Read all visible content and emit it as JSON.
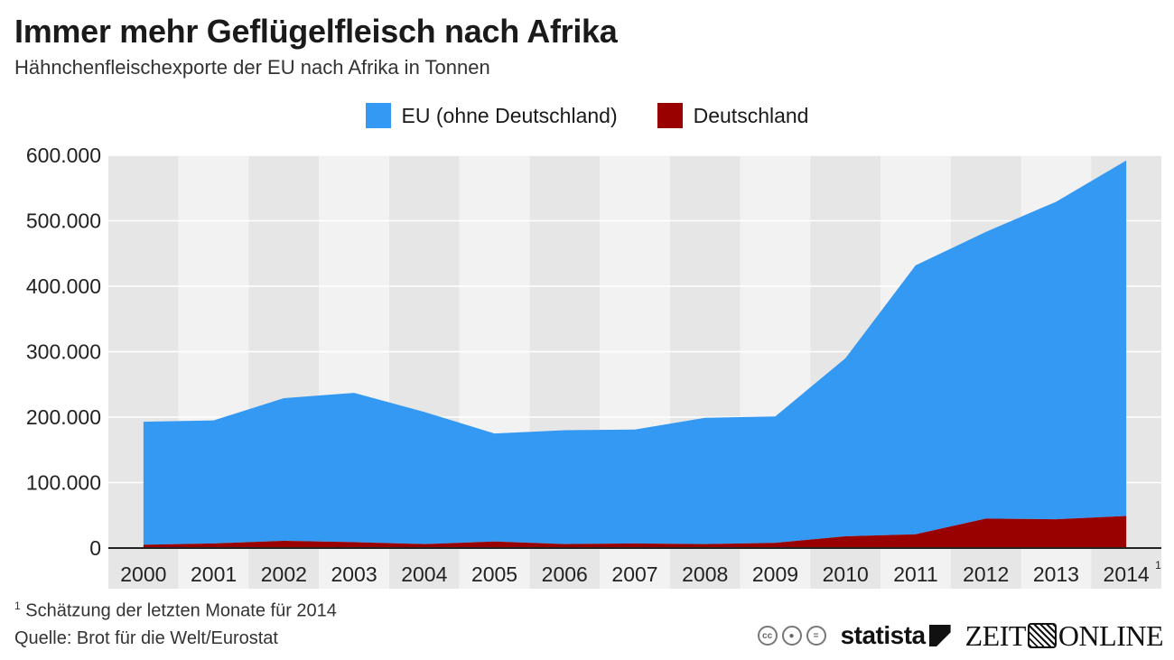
{
  "header": {
    "title": "Immer mehr Geflügelfleisch nach Afrika",
    "subtitle": "Hähnchenfleischexporte der EU nach Afrika in Tonnen"
  },
  "chart_data": {
    "type": "area",
    "stacked": true,
    "title": "Immer mehr Geflügelfleisch nach Afrika",
    "subtitle": "Hähnchenfleischexporte der EU nach Afrika in Tonnen",
    "categories": [
      "2000",
      "2001",
      "2002",
      "2003",
      "2004",
      "2005",
      "2006",
      "2007",
      "2008",
      "2009",
      "2010",
      "2011",
      "2012",
      "2013",
      "2014"
    ],
    "category_footnote_marker": {
      "index": 14,
      "marker": "1"
    },
    "series": [
      {
        "name": "EU (ohne Deutschland)",
        "color": "#3399f3",
        "values": [
          188000,
          188000,
          218000,
          228000,
          202000,
          165000,
          174000,
          174000,
          193000,
          193000,
          272000,
          411000,
          438000,
          485000,
          543000
        ]
      },
      {
        "name": "Deutschland",
        "color": "#990000",
        "values": [
          5000,
          7000,
          11000,
          9000,
          6000,
          10000,
          6000,
          7000,
          6000,
          8000,
          18000,
          21000,
          45000,
          44000,
          49000
        ]
      }
    ],
    "yticks": [
      "0",
      "100.000",
      "200.000",
      "300.000",
      "400.000",
      "500.000",
      "600.000"
    ],
    "ytick_values": [
      0,
      100000,
      200000,
      300000,
      400000,
      500000,
      600000
    ],
    "ylim": [
      0,
      600000
    ],
    "grid": true,
    "legend_position": "top-center",
    "band_colors": {
      "dark": "#e6e6e6",
      "light": "#f2f2f2"
    },
    "xlabel": "",
    "ylabel": ""
  },
  "footer": {
    "footnote_marker": "1",
    "footnote": "Schätzung der letzten Monate für 2014",
    "source": "Quelle: Brot für die Welt/Eurostat",
    "cc_icons": [
      "cc",
      "by",
      "nd"
    ],
    "statista_logo": "statista",
    "zeit_logo_left": "ZEIT",
    "zeit_logo_right": "ONLINE"
  }
}
